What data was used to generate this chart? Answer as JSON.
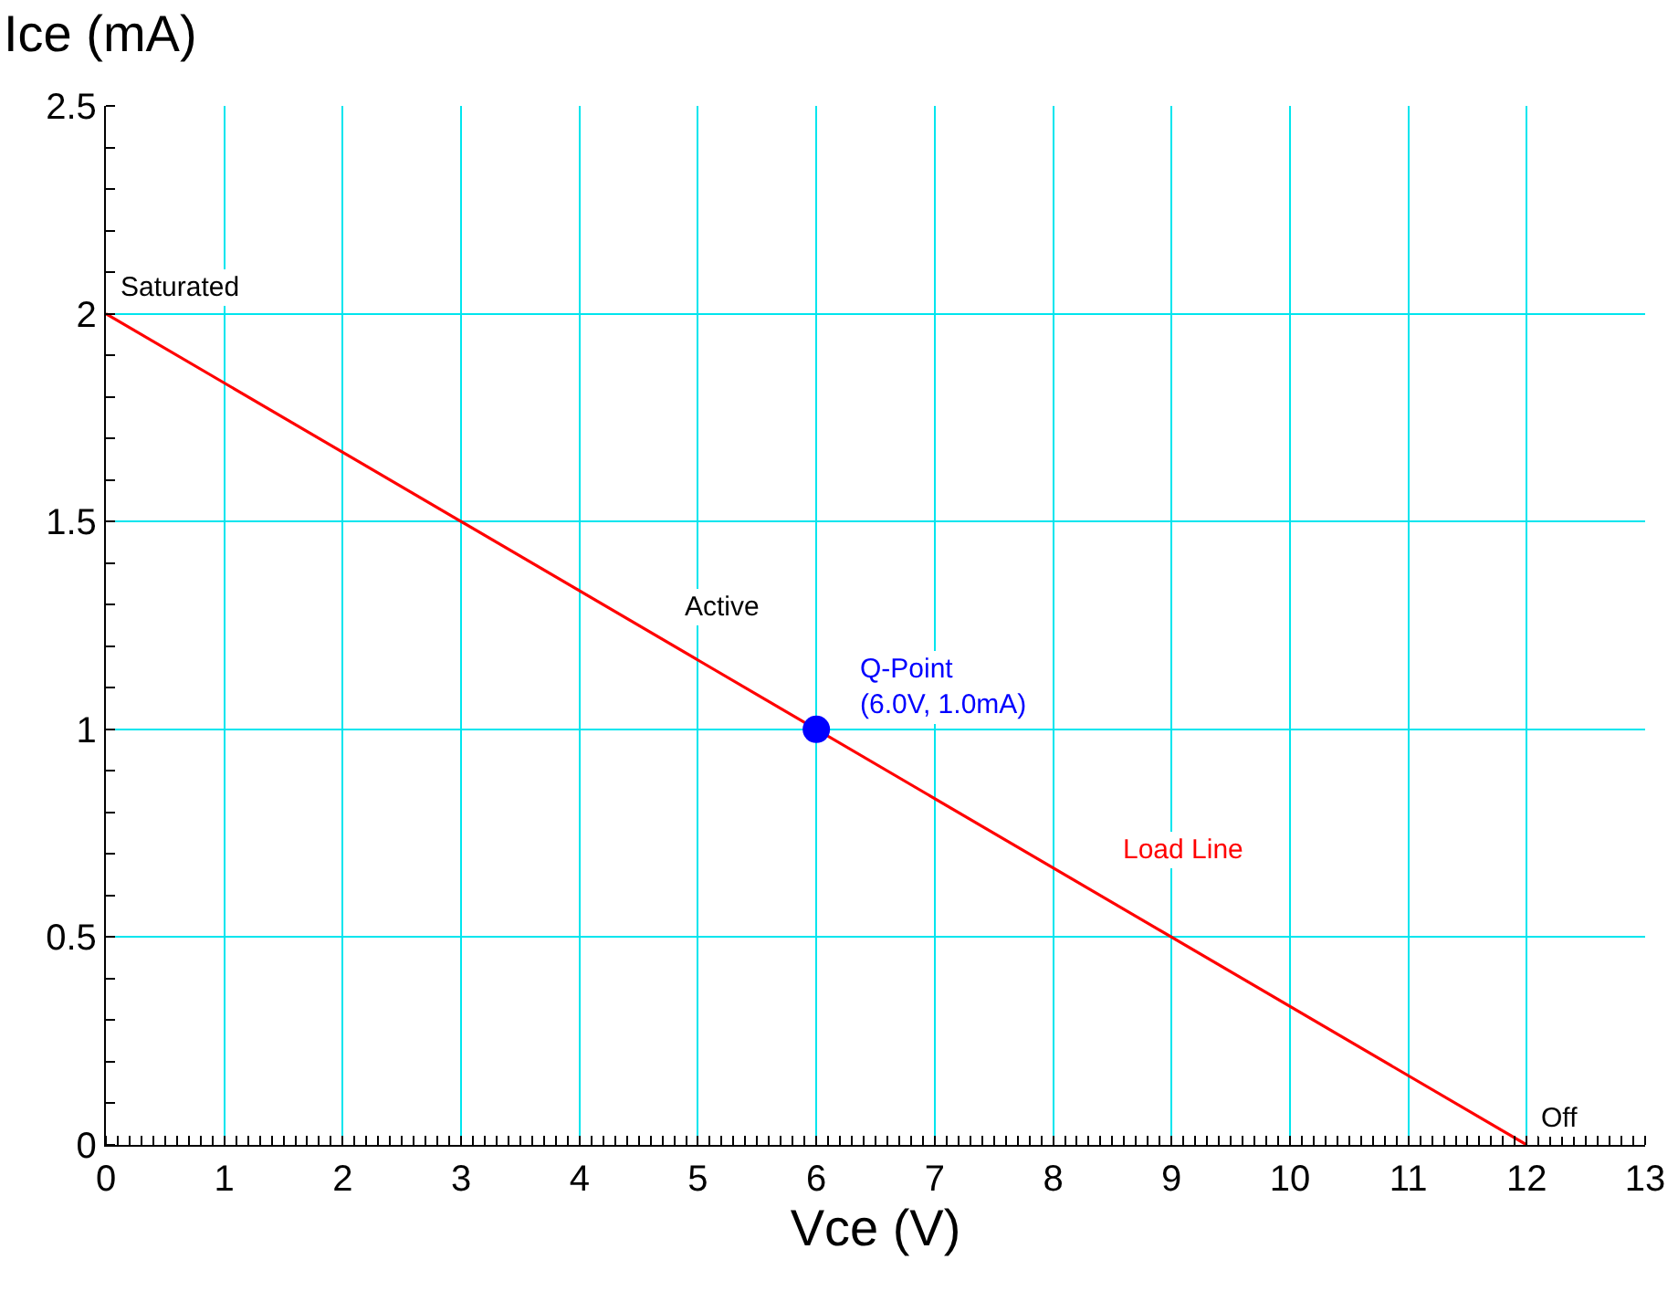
{
  "chart_data": {
    "type": "line",
    "xlabel": "Vce (V)",
    "ylabel": "Ice (mA)",
    "x": [
      0,
      12
    ],
    "series": [
      {
        "name": "Load Line",
        "color": "#ff0000",
        "values": [
          2,
          0
        ]
      },
      {
        "type": "scatter",
        "name": "Q-Point",
        "color": "#0000ff",
        "x": [
          6
        ],
        "values": [
          1
        ],
        "value_labels": [
          "(6.0V, 1.0mA)"
        ],
        "marker": "circle"
      }
    ],
    "annotations": [
      {
        "text": "Saturated",
        "x": 0,
        "y": 2
      },
      "Active",
      {
        "text": "Off",
        "x": 12,
        "y": 0
      }
    ],
    "xlim": [
      0,
      13
    ],
    "xticks": [
      0,
      1,
      2,
      3,
      4,
      5,
      6,
      7,
      8,
      9,
      10,
      11,
      12,
      13
    ],
    "ylim": [
      0,
      2.5
    ],
    "yticks": [
      0,
      0.5,
      1,
      1.5,
      2,
      2.5
    ],
    "grid": true,
    "legend": false,
    "marker": "none",
    "line_style": "solid"
  }
}
